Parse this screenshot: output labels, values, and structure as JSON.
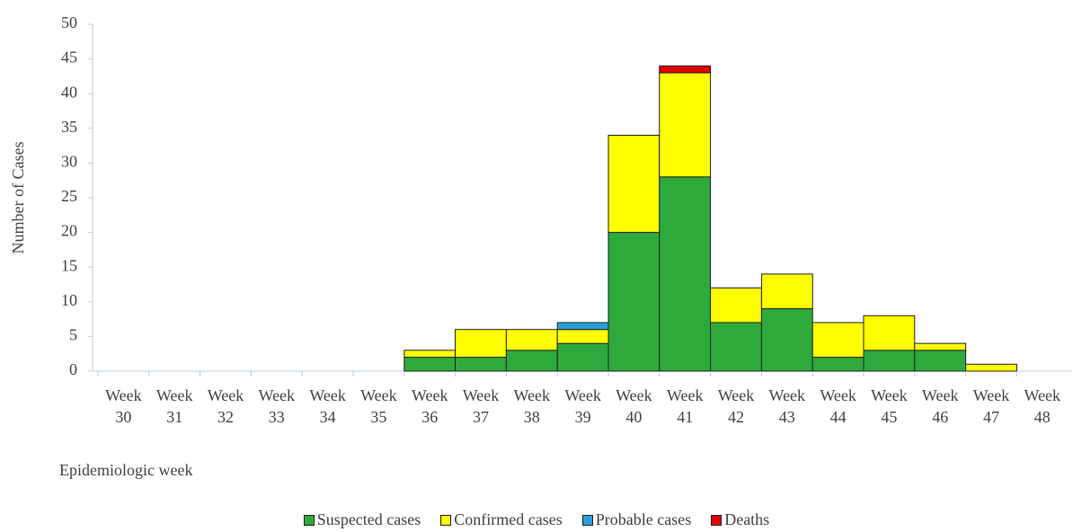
{
  "chart_data": {
    "type": "stacked_bar",
    "y_label": "Number of Cases",
    "x_label": "Epidemiologic week",
    "categories": [
      "Week 30",
      "Week 31",
      "Week 32",
      "Week 33",
      "Week 34",
      "Week 35",
      "Week 36",
      "Week 37",
      "Week 38",
      "Week 39",
      "Week 40",
      "Week 41",
      "Week 42",
      "Week 43",
      "Week 44",
      "Week 45",
      "Week 46",
      "Week 47",
      "Week 48"
    ],
    "series": [
      {
        "name": "Suspected cases",
        "color": "#2eaa3c",
        "values": [
          0,
          0,
          0,
          0,
          0,
          0,
          2,
          2,
          3,
          4,
          20,
          28,
          7,
          9,
          2,
          3,
          3,
          0,
          0
        ]
      },
      {
        "name": "Confirmed cases",
        "color": "#ffff00",
        "values": [
          0,
          0,
          0,
          0,
          0,
          0,
          1,
          4,
          3,
          2,
          14,
          15,
          5,
          5,
          5,
          5,
          1,
          1,
          0
        ]
      },
      {
        "name": "Probable cases",
        "color": "#2a9fd8",
        "values": [
          0,
          0,
          0,
          0,
          0,
          0,
          0,
          0,
          0,
          1,
          0,
          0,
          0,
          0,
          0,
          0,
          0,
          0,
          0
        ]
      },
      {
        "name": "Deaths",
        "color": "#e00000",
        "values": [
          0,
          0,
          0,
          0,
          0,
          0,
          0,
          0,
          0,
          0,
          0,
          1,
          0,
          0,
          0,
          0,
          0,
          0,
          0
        ]
      }
    ],
    "ylim": [
      0,
      50
    ],
    "yticks": [
      0,
      5,
      10,
      15,
      20,
      25,
      30,
      35,
      40,
      45,
      50
    ]
  }
}
